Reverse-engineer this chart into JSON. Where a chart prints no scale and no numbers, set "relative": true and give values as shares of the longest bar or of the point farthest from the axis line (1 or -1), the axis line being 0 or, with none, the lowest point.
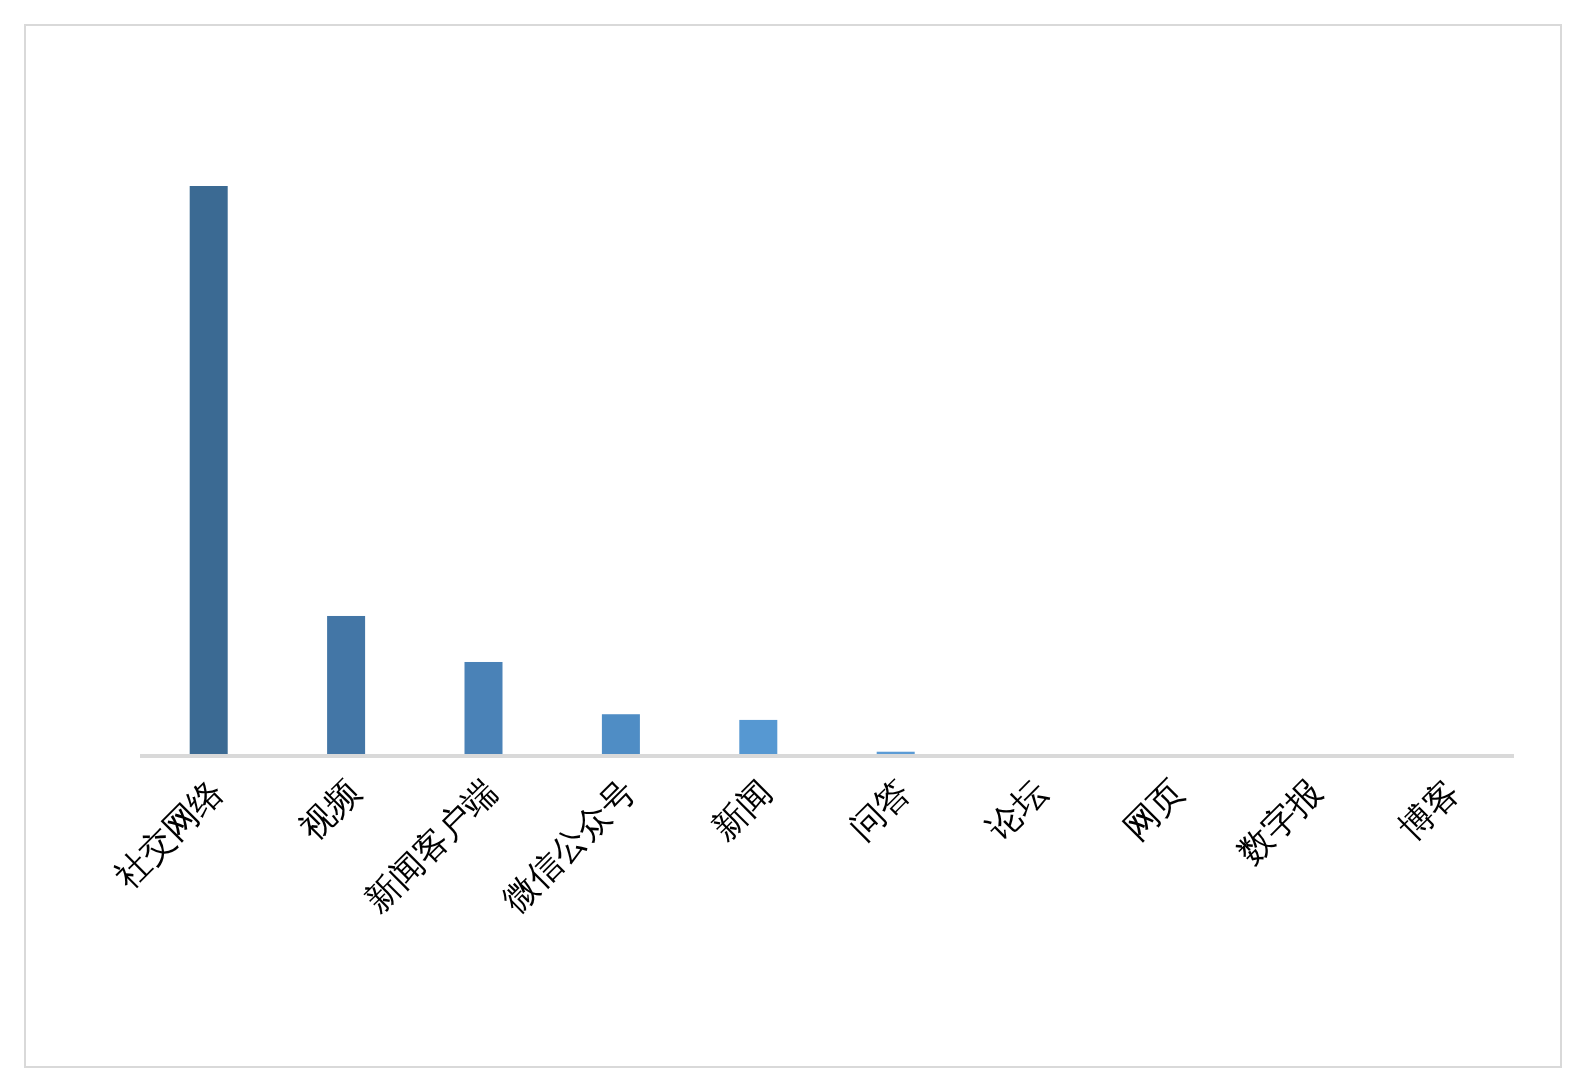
{
  "chart_data": {
    "type": "bar",
    "relative": true,
    "categories": [
      "社交网络",
      "视频",
      "新闻客户端",
      "微信公众号",
      "新闻",
      "问答",
      "论坛",
      "网页",
      "数字报",
      "博客"
    ],
    "values": [
      1,
      0.243,
      0.162,
      0.07,
      0.06,
      0.004,
      0,
      0,
      0,
      0
    ],
    "colors": [
      "#3b6a93",
      "#4376a6",
      "#4a82b7",
      "#4f8dc5",
      "#5698d2",
      "#5b9bd5",
      "#5b9bd5",
      "#5b9bd5",
      "#5b9bd5",
      "#5b9bd5"
    ]
  }
}
